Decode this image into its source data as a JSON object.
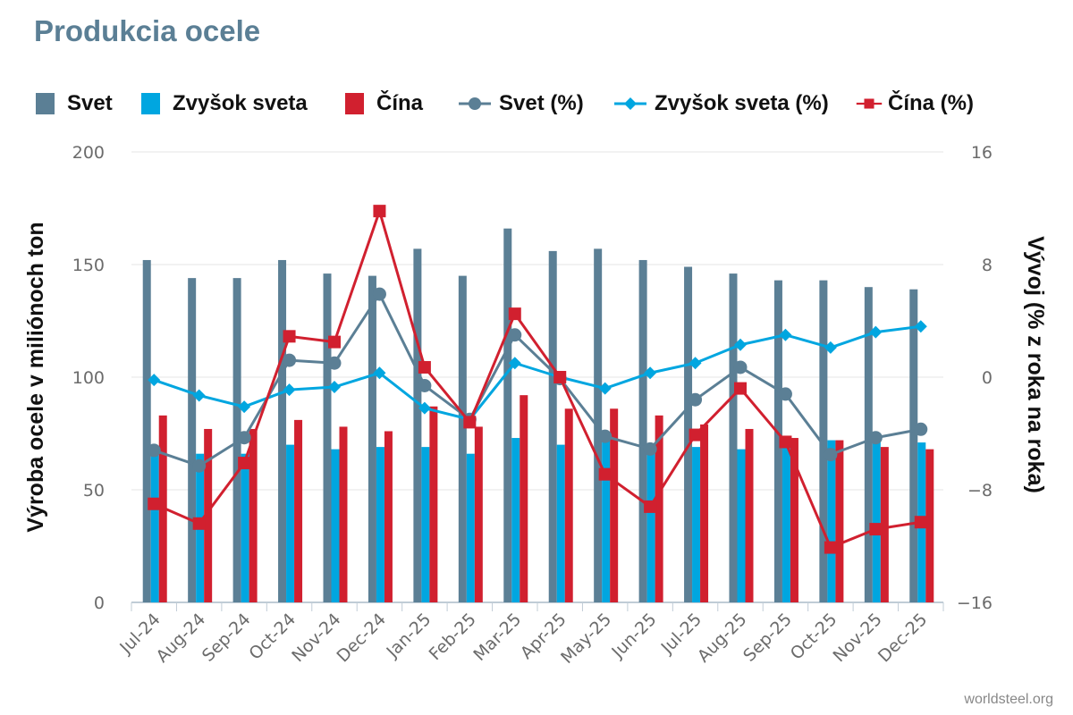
{
  "chart_data": {
    "type": "bar+line",
    "title": "Produkcia ocele",
    "categories": [
      "Jul-24",
      "Aug-24",
      "Sep-24",
      "Oct-24",
      "Nov-24",
      "Dec-24",
      "Jan-25",
      "Feb-25",
      "Mar-25",
      "Apr-25",
      "May-25",
      "Jun-25",
      "Jul-25",
      "Aug-25",
      "Sep-25",
      "Oct-25",
      "Nov-25",
      "Dec-25"
    ],
    "ylabel": "Výroba ocele v miliónoch ton",
    "y2label": "Vývoj (% z roka na roka)",
    "ylim": [
      0,
      200
    ],
    "y2lim": [
      -16,
      16
    ],
    "yticks": [
      "0",
      "50",
      "100",
      "150",
      "200"
    ],
    "y2ticks": [
      "−16",
      "−8",
      "0",
      "8",
      "16"
    ],
    "legend_position": "top",
    "bar_series": [
      {
        "name": "Svet",
        "color": "#5b7f95",
        "values": [
          152,
          144,
          144,
          152,
          146,
          145,
          157,
          145,
          166,
          156,
          157,
          152,
          149,
          146,
          143,
          143,
          140,
          139
        ]
      },
      {
        "name": "Zvyšok sveta",
        "color": "#00a6e0",
        "values": [
          67,
          66,
          66,
          70,
          68,
          69,
          69,
          66,
          73,
          70,
          72,
          70,
          69,
          68,
          71,
          72,
          72,
          71
        ]
      },
      {
        "name": "Čína",
        "color": "#d1202f",
        "values": [
          83,
          77,
          77,
          81,
          78,
          76,
          87,
          78,
          92,
          86,
          86,
          83,
          79,
          77,
          73,
          72,
          69,
          68
        ]
      }
    ],
    "line_series": [
      {
        "name": "Svet (%)",
        "color": "#5b7f95",
        "marker": "circle",
        "values": [
          -5.2,
          -6.3,
          -4.3,
          1.2,
          1.0,
          5.9,
          -0.6,
          -3.0,
          3.0,
          -0.1,
          -4.2,
          -5.1,
          -1.6,
          0.7,
          -1.2,
          -5.5,
          -4.3,
          -3.7
        ]
      },
      {
        "name": "Zvyšok sveta (%)",
        "color": "#00a6e0",
        "marker": "diamond",
        "values": [
          -0.2,
          -1.3,
          -2.1,
          -0.9,
          -0.7,
          0.3,
          -2.2,
          -3.0,
          1.0,
          0.0,
          -0.8,
          0.3,
          1.0,
          2.3,
          3.0,
          2.1,
          3.2,
          3.6
        ]
      },
      {
        "name": "Čína (%)",
        "color": "#d1202f",
        "marker": "square",
        "values": [
          -9.0,
          -10.4,
          -6.1,
          2.9,
          2.5,
          11.8,
          0.7,
          -3.2,
          4.5,
          0.0,
          -6.9,
          -9.2,
          -4.1,
          -0.8,
          -4.6,
          -12.1,
          -10.8,
          -10.3
        ]
      }
    ]
  },
  "source": "worldsteel.org"
}
